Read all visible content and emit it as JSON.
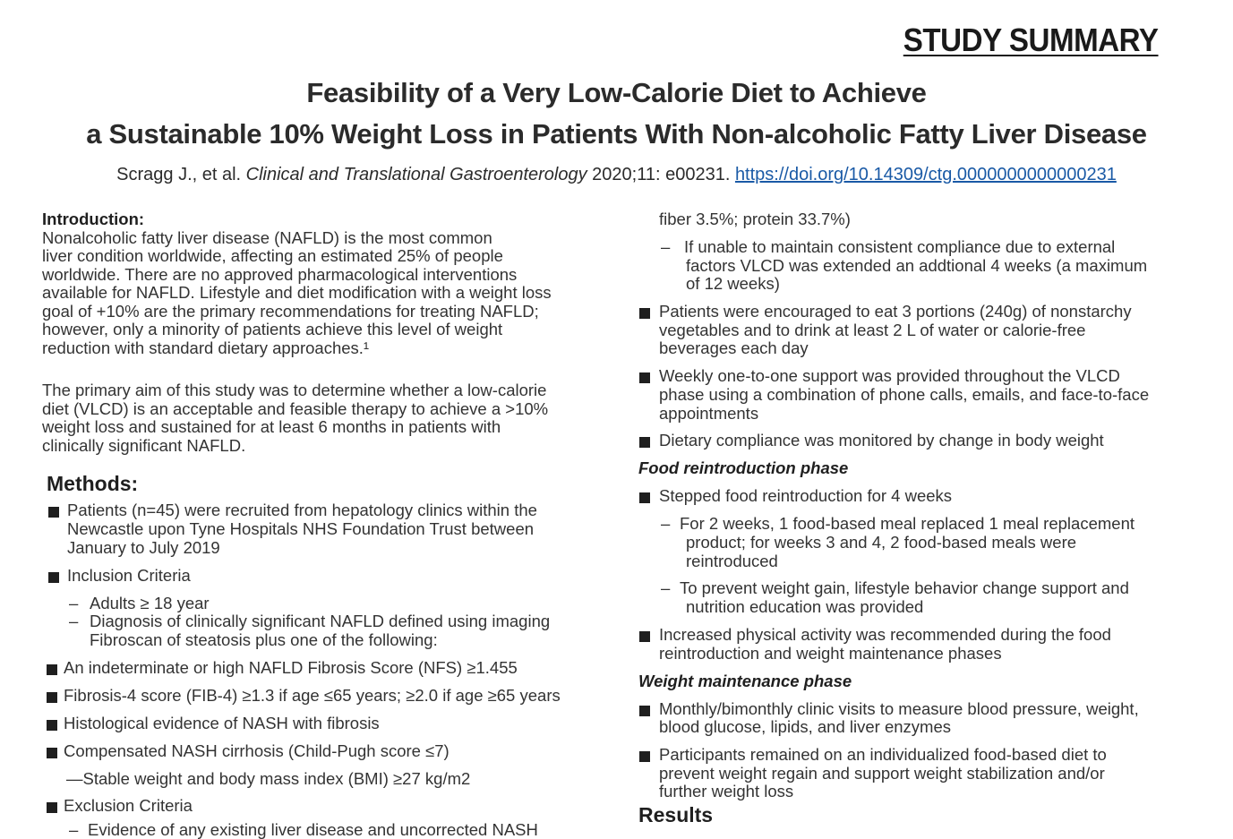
{
  "banner": "STUDY SUMMARY",
  "title": {
    "line1": "Feasibility of a Very Low-Calorie Diet to Achieve",
    "line2": "a Sustainable 10% Weight Loss in Patients With Non-alcoholic Fatty Liver Disease"
  },
  "citation": {
    "authors": "Scragg J., et al. ",
    "journal": "Clinical and Translational Gastroenterology",
    "details": " 2020;11: e00231. ",
    "doi": "https://doi.org/10.14309/ctg.0000000000000231"
  },
  "left": {
    "intro_heading": "Introduction:",
    "intro_p1": [
      "Nonalcoholic fatty liver disease (NAFLD) is the most common",
      "liver condition worldwide, affecting an estimated 25% of people",
      "worldwide. There are no approved pharmacological interventions",
      "available for NAFLD. Lifestyle and diet modification with a weight loss",
      "goal of +10% are the primary recommendations for treating NAFLD;",
      "however, only a minority of patients achieve this level of weight",
      "reduction with standard dietary approaches.¹"
    ],
    "intro_p2": [
      "The primary aim of this study was to determine whether a low-calorie",
      "diet (VLCD) is an acceptable and feasible therapy to achieve a >10%",
      "weight loss and sustained for at least 6 months in patients with",
      "clinically significant NAFLD."
    ],
    "methods_heading": "Methods:",
    "m1": [
      "Patients (n=45) were recruited from hepatology clinics within the",
      "Newcastle upon Tyne Hospitals NHS Foundation Trust between",
      "January to July 2019"
    ],
    "m2": "Inclusion Criteria",
    "m2a": "Adults ≥ 18 year",
    "m2b": [
      "Diagnosis of clinically significant NAFLD defined using imaging",
      "Fibroscan of steatosis plus one of the following:"
    ],
    "m3": "An indeterminate or high NAFLD Fibrosis Score (NFS) ≥1.455",
    "m4": "Fibrosis-4 score (FIB-4) ≥1.3 if age ≤65 years; ≥2.0 if age ≥65 years",
    "m5": "Histological evidence of NASH with fibrosis",
    "m6": "Compensated NASH cirrhosis (Child-Pugh score ≤7)",
    "m7": "—Stable weight and body mass index (BMI) ≥27 kg/m2",
    "m8": "Exclusion Criteria",
    "m9": "Evidence of any existing liver disease and uncorrected NASH"
  },
  "right": {
    "r0": "fiber 3.5%; protein 33.7%)",
    "r1": [
      "If unable to maintain consistent compliance due to external",
      "factors VLCD was extended an addtional 4 weeks (a maximum",
      "of 12 weeks)"
    ],
    "r2": [
      "Patients were encouraged to eat 3 portions (240g) of nonstarchy",
      "vegetables and to drink at least 2 L of water or calorie-free",
      "beverages each day"
    ],
    "r3": [
      "Weekly one-to-one support was provided throughout the VLCD",
      "phase using a combination of phone calls, emails, and face-to-face",
      "appointments"
    ],
    "r4": "Dietary compliance was monitored by change in body weight",
    "food_heading": "Food reintroduction phase",
    "r5": "Stepped food reintroduction for 4 weeks",
    "r6": [
      "For 2 weeks, 1 food-based meal replaced 1 meal replacement",
      "product; for weeks 3 and 4, 2 food-based meals were",
      "reintroduced"
    ],
    "r7": [
      "To prevent weight gain, lifestyle behavior change support and",
      "nutrition education was provided"
    ],
    "r8": [
      "Increased physical activity was recommended during the food",
      "reintroduction and weight maintenance phases"
    ],
    "maint_heading": "Weight maintenance phase",
    "r9": [
      "Monthly/bimonthly clinic visits to measure blood pressure, weight,",
      "blood glucose, lipids, and liver enzymes"
    ],
    "r10": [
      "Participants remained on an individualized food-based diet to",
      "prevent weight regain and support weight stabilization and/or",
      "further weight loss"
    ],
    "results_heading": "Results"
  },
  "colors": {
    "text": "#333333",
    "link": "#1a5aa6",
    "bullet": "#1f1f1f"
  }
}
